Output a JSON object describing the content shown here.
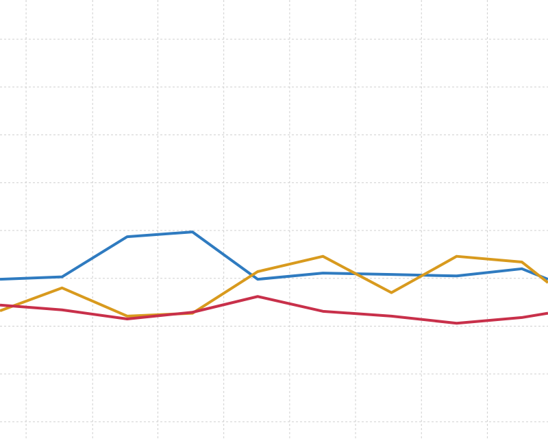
{
  "chart_data": {
    "type": "line",
    "x": [
      0,
      0.95,
      1.95,
      2.95,
      3.95,
      4.95,
      6,
      7,
      8,
      8.4
    ],
    "series": [
      {
        "color": "#2f7bc0",
        "values": [
          2.98,
          3.03,
          3.87,
          3.97,
          2.98,
          3.11,
          3.08,
          3.05,
          3.2,
          2.98
        ]
      },
      {
        "color": "#d89a1e",
        "values": [
          2.32,
          2.8,
          2.21,
          2.27,
          3.14,
          3.46,
          2.7,
          3.46,
          3.34,
          2.91
        ]
      },
      {
        "color": "#c8304a",
        "values": [
          2.44,
          2.34,
          2.15,
          2.29,
          2.62,
          2.31,
          2.21,
          2.06,
          2.18,
          2.27
        ]
      }
    ],
    "xlim": [
      0,
      8.4
    ],
    "ylim": [
      -0.36,
      8.82
    ],
    "xticks": [
      0.4,
      1.42,
      2.42,
      3.43,
      4.44,
      5.45,
      6.46,
      7.47
    ],
    "yticks": [
      0,
      1,
      2,
      3,
      4,
      5,
      6,
      7,
      8
    ],
    "grid": true
  }
}
